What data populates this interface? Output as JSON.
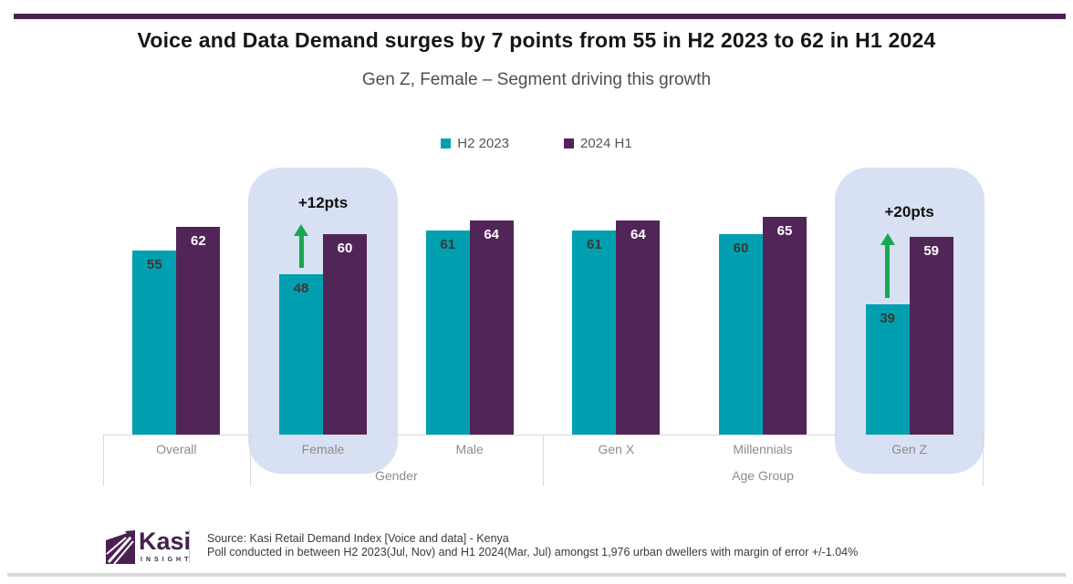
{
  "header": {
    "title": "Voice and Data Demand surges by 7 points from 55 in H2 2023 to 62 in H1 2024",
    "subtitle": "Gen Z, Female – Segment driving this growth"
  },
  "legend": {
    "items": [
      {
        "label": "H2 2023",
        "color": "#01A0B0"
      },
      {
        "label": "2024 H1",
        "color": "#522559"
      }
    ]
  },
  "chart_data": {
    "type": "bar",
    "categories": [
      "Overall",
      "Female",
      "Male",
      "Gen X",
      "Millennials",
      "Gen Z"
    ],
    "series": [
      {
        "name": "H2 2023",
        "color": "#01A0B0",
        "values": [
          55,
          48,
          61,
          61,
          60,
          39
        ]
      },
      {
        "name": "2024 H1",
        "color": "#522559",
        "values": [
          62,
          60,
          64,
          64,
          65,
          59
        ]
      }
    ],
    "group_labels": [
      {
        "label": "Gender",
        "categories": [
          "Female",
          "Male"
        ]
      },
      {
        "label": "Age Group",
        "categories": [
          "Gen X",
          "Millennials",
          "Gen Z"
        ]
      }
    ],
    "annotations": [
      {
        "category": "Female",
        "text": "+12pts"
      },
      {
        "category": "Gen Z",
        "text": "+20pts"
      }
    ],
    "highlighted_categories": [
      "Female",
      "Gen Z"
    ],
    "ylim": [
      0,
      70
    ],
    "value_labels": true,
    "legend_position": "top",
    "grid": false
  },
  "footer": {
    "logo": {
      "name": "Kasi",
      "subtext": "INSIGHT"
    },
    "source_line1": "Source: Kasi Retail Demand Index [Voice and data] - Kenya",
    "source_line2": "Poll conducted  in between H2 2023(Jul, Nov) and H1 2024(Mar, Jul) amongst 1,976 urban dwellers with margin of error +/-1.04%"
  },
  "colors": {
    "teal": "#01A0B0",
    "purple": "#522559",
    "highlight_fill": "#D8E0F3",
    "arrow_green": "#17A84F",
    "axis_line": "#D9D9D9",
    "top_border": "#4E2155",
    "bottom_border": "#D9D9D9",
    "label_gray": "#8C8C8C",
    "logo_purple": "#42214A"
  }
}
